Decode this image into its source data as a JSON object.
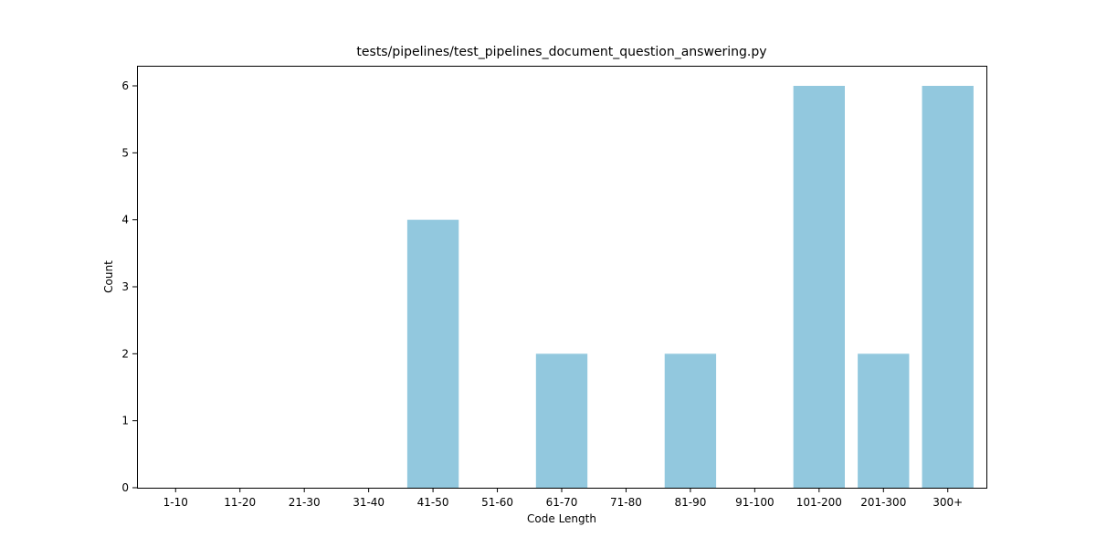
{
  "chart_data": {
    "type": "bar",
    "title": "tests/pipelines/test_pipelines_document_question_answering.py",
    "xlabel": "Code Length",
    "ylabel": "Count",
    "categories": [
      "1-10",
      "11-20",
      "21-30",
      "31-40",
      "41-50",
      "51-60",
      "61-70",
      "71-80",
      "81-90",
      "91-100",
      "101-200",
      "201-300",
      "300+"
    ],
    "values": [
      0,
      0,
      0,
      0,
      4,
      0,
      2,
      0,
      2,
      0,
      6,
      2,
      6
    ],
    "ylim": [
      0,
      6.3
    ],
    "yticks": [
      0,
      1,
      2,
      3,
      4,
      5,
      6
    ],
    "bar_color": "#92c8de",
    "grid": false,
    "legend": false
  }
}
